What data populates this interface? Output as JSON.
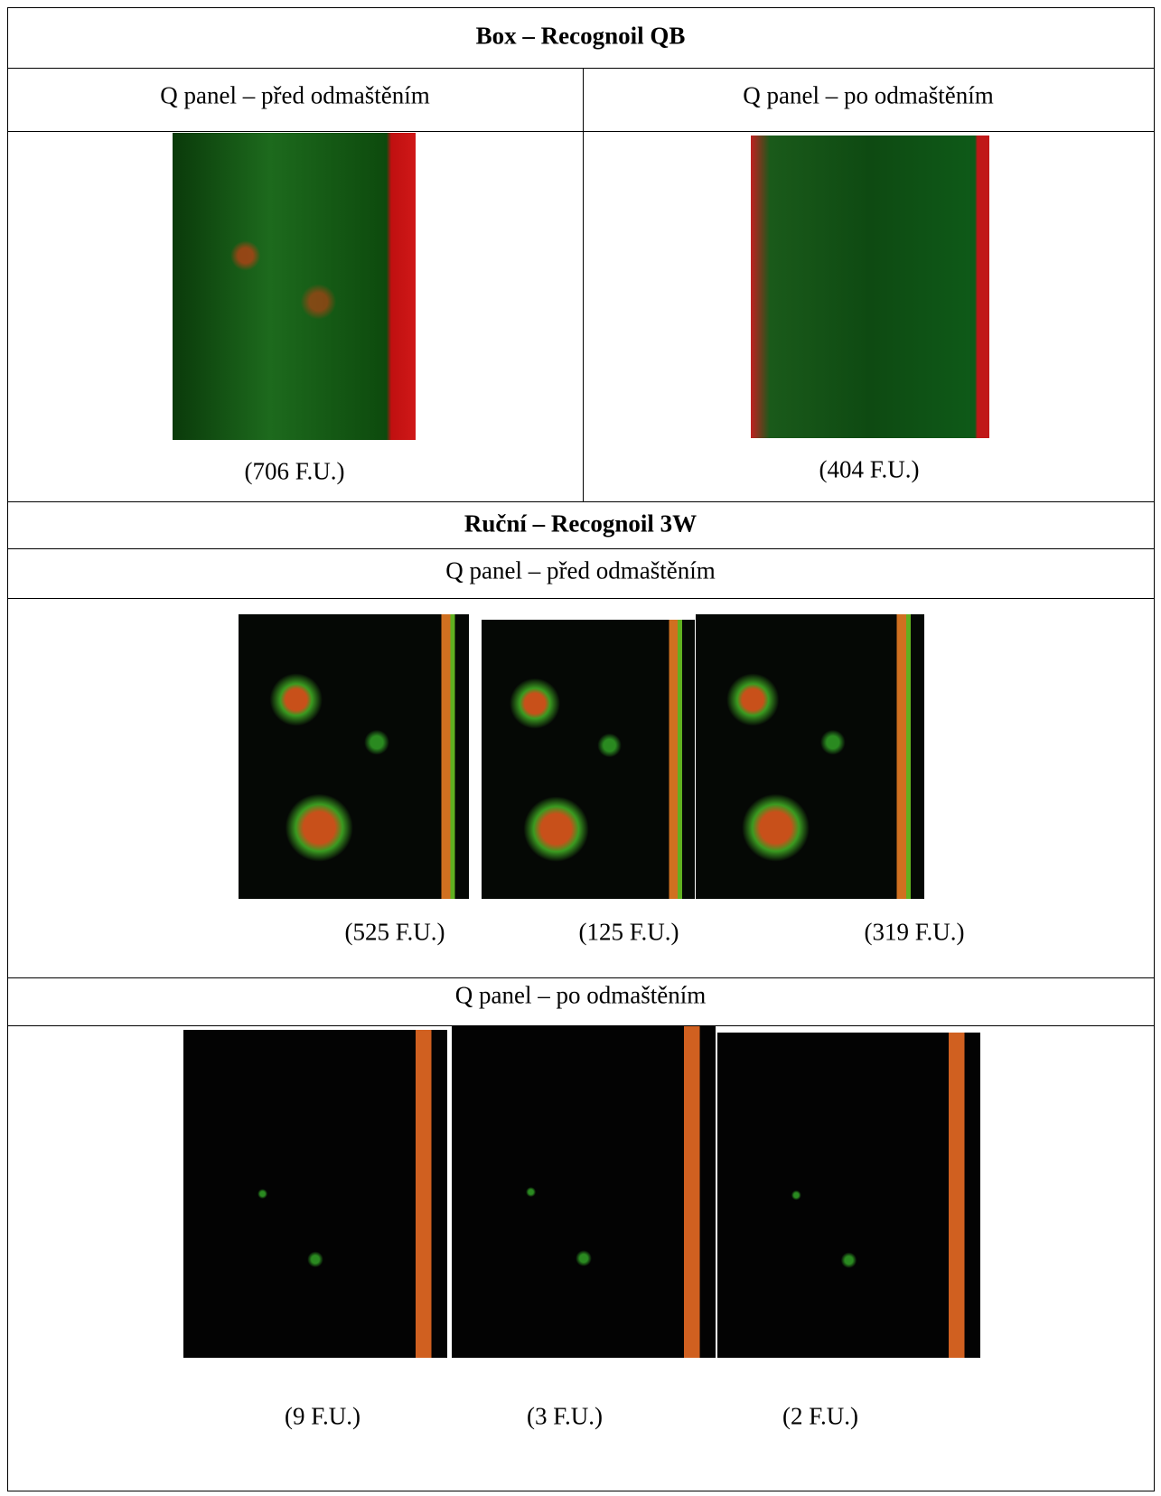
{
  "table": {
    "title": "Box – Recognoil QB",
    "box": {
      "headers": [
        "Q panel – před odmaštěním",
        "Q panel – po odmaštěním"
      ],
      "captions": [
        "(706 F.U.)",
        "(404 F.U.)"
      ]
    },
    "manual": {
      "title": "Ruční – Recognoil 3W",
      "before": {
        "header": "Q panel – před odmaštěním",
        "captions": [
          "(525 F.U.)",
          "(125 F.U.)",
          "(319 F.U.)"
        ]
      },
      "after": {
        "header": "Q panel – po odmaštěním",
        "captions": [
          "(9 F.U.)",
          "(3 F.U.)",
          "(2 F.U.)"
        ]
      }
    }
  }
}
